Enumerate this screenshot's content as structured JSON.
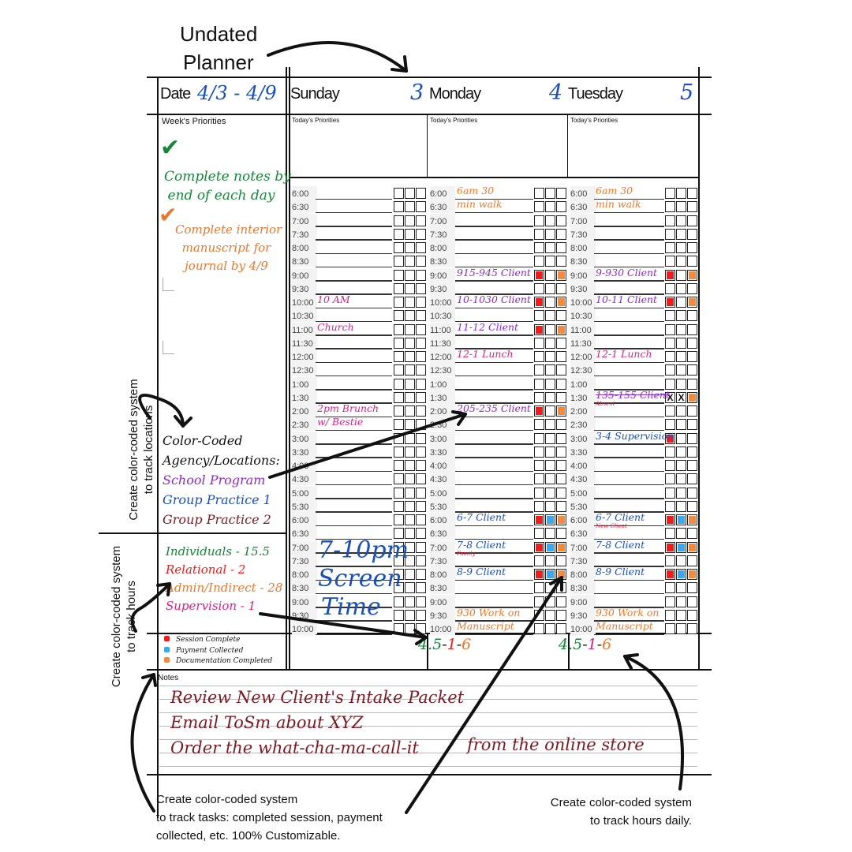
{
  "annotations": {
    "undated": "Undated",
    "planner": "Planner",
    "locations_1": "Create color-coded system",
    "locations_2": "to track locations",
    "hours_1": "Create color-coded system",
    "hours_2": "to track hours",
    "tasks_1": "Create color-coded system",
    "tasks_2": "to track tasks: completed session, payment",
    "tasks_3": "collected, etc. 100% Customizable.",
    "daily_1": "Create color-coded system",
    "daily_2": "to track hours daily."
  },
  "colors": {
    "session_complete": "#f01c1c",
    "payment_collected": "#3aa8f0",
    "documentation_completed": "#f6893a",
    "purple": "#8a2bc8",
    "blue": "#1a4fb8",
    "pink": "#d6228a",
    "orange": "#e8782c",
    "green": "#17853a",
    "maroon": "#7a1a22"
  },
  "header": {
    "date_label": "Date",
    "date_range": "4/3 - 4/9",
    "days": [
      {
        "name": "Sunday",
        "num": "3"
      },
      {
        "name": "Monday",
        "num": "4"
      },
      {
        "name": "Tuesday",
        "num": "5"
      }
    ]
  },
  "week_priorities": {
    "label": "Week's Priorities",
    "items": [
      {
        "text1": "Complete notes by",
        "text2": "end of each day",
        "checked": true
      },
      {
        "text1": "Complete interior",
        "text2": "manuscript for",
        "text3": "journal by 4/9",
        "checked": true
      }
    ]
  },
  "today_priorities_label": "Today's Priorities",
  "locations": {
    "title1": "Color-Coded",
    "title2": "Agency/Locations:",
    "items": [
      {
        "label": "School Program",
        "color": "#8a2bc8"
      },
      {
        "label": "Group Practice 1",
        "color": "#1a4fb8"
      },
      {
        "label": "Group Practice 2",
        "color": "#7a1a22"
      }
    ]
  },
  "hours": [
    {
      "label": "Individuals - 15.5",
      "color": "#17853a"
    },
    {
      "label": "Relational - 2",
      "color": "#f01c1c"
    },
    {
      "label": "Admin/Indirect - 28",
      "color": "#e8782c"
    },
    {
      "label": "Supervision - 1",
      "color": "#d6228a"
    }
  ],
  "legend": [
    {
      "label": "Session Complete",
      "color": "#f01c1c"
    },
    {
      "label": "Payment Collected",
      "color": "#3aa8f0"
    },
    {
      "label": "Documentation Completed",
      "color": "#f6893a"
    }
  ],
  "times": [
    "6:00",
    "6:30",
    "7:00",
    "7:30",
    "8:00",
    "8:30",
    "9:00",
    "9:30",
    "10:00",
    "10:30",
    "11:00",
    "11:30",
    "12:00",
    "12:30",
    "1:00",
    "1:30",
    "2:00",
    "2:30",
    "3:00",
    "3:30",
    "4:00",
    "4:30",
    "5:00",
    "5:30",
    "6:00",
    "6:30",
    "7:00",
    "7:30",
    "8:00",
    "8:30",
    "9:00",
    "9:30",
    "10:00"
  ],
  "days": [
    {
      "entries": {
        "8": {
          "text": "10 AM",
          "color": "#d6228a"
        },
        "10": {
          "text": "Church",
          "color": "#d6228a"
        },
        "16": {
          "text": "2pm Brunch",
          "color": "#d6228a"
        },
        "17": {
          "text": "w/ Bestie",
          "color": "#d6228a"
        }
      },
      "big_note": {
        "l1": "7-10pm",
        "l2": "Screen",
        "l3": "Time",
        "color": "#1a4fb8"
      },
      "totals": []
    },
    {
      "entries": {
        "0": {
          "text": "6am 30",
          "color": "#e8782c"
        },
        "1": {
          "text": "min walk",
          "color": "#e8782c"
        },
        "6": {
          "text": "915-945 Client",
          "color": "#8a2bc8",
          "checks": [
            "r",
            "",
            "o"
          ]
        },
        "8": {
          "text": "10-1030 Client",
          "color": "#8a2bc8",
          "checks": [
            "r",
            "",
            "o"
          ]
        },
        "10": {
          "text": "11-12 Client",
          "color": "#8a2bc8",
          "checks": [
            "r",
            "",
            "o"
          ]
        },
        "12": {
          "text": "12-1 Lunch",
          "color": "#d6228a"
        },
        "16": {
          "text": "205-235 Client",
          "color": "#8a2bc8",
          "checks": [
            "r",
            "",
            "o"
          ]
        },
        "24": {
          "text": "6-7 Client",
          "color": "#1a4fb8",
          "checks": [
            "r",
            "b",
            "o"
          ]
        },
        "26": {
          "text": "7-8 Client",
          "color": "#1a4fb8",
          "checks": [
            "r",
            "b",
            "o"
          ],
          "note": "Family"
        },
        "28": {
          "text": "8-9 Client",
          "color": "#1a4fb8",
          "checks": [
            "r",
            "b",
            "o"
          ]
        },
        "31": {
          "text": "930 Work on",
          "color": "#e8782c"
        },
        "32": {
          "text": "Manuscript",
          "color": "#e8782c"
        }
      },
      "totals": [
        {
          "v": "4.5",
          "color": "#17853a"
        },
        {
          "v": "-",
          "color": "#111"
        },
        {
          "v": "1",
          "color": "#f01c1c"
        },
        {
          "v": "-",
          "color": "#111"
        },
        {
          "v": "6",
          "color": "#e8782c"
        }
      ]
    },
    {
      "entries": {
        "0": {
          "text": "6am 30",
          "color": "#e8782c"
        },
        "1": {
          "text": "min walk",
          "color": "#e8782c"
        },
        "6": {
          "text": "9-930 Client",
          "color": "#8a2bc8",
          "checks": [
            "r",
            "",
            "o"
          ]
        },
        "8": {
          "text": "10-11 Client",
          "color": "#8a2bc8",
          "checks": [
            "r",
            "",
            "o"
          ]
        },
        "12": {
          "text": "12-1 Lunch",
          "color": "#d6228a"
        },
        "15": {
          "text": "135-155 Client",
          "color": "#8a2bc8",
          "strike": true,
          "checks": [
            "x",
            "x",
            "o"
          ]
        },
        "16": {
          "text": "",
          "note": "Absent"
        },
        "18": {
          "text": "3-4 Supervision",
          "color": "#1a4fb8",
          "checks": [
            "r",
            "",
            ""
          ]
        },
        "24": {
          "text": "6-7 Client",
          "color": "#1a4fb8",
          "checks": [
            "r",
            "b",
            "o"
          ]
        },
        "25": {
          "text": "",
          "note": "New Client"
        },
        "26": {
          "text": "7-8 Client",
          "color": "#1a4fb8",
          "checks": [
            "r",
            "b",
            "o"
          ]
        },
        "28": {
          "text": "8-9 Client",
          "color": "#1a4fb8",
          "checks": [
            "r",
            "b",
            "o"
          ]
        },
        "31": {
          "text": "930 Work on",
          "color": "#e8782c"
        },
        "32": {
          "text": "Manuscript",
          "color": "#e8782c"
        }
      },
      "totals": [
        {
          "v": "4.5",
          "color": "#17853a"
        },
        {
          "v": "-",
          "color": "#111"
        },
        {
          "v": "1",
          "color": "#d6228a"
        },
        {
          "v": "-",
          "color": "#111"
        },
        {
          "v": "6",
          "color": "#e8782c"
        }
      ]
    }
  ],
  "notes": {
    "label": "Notes",
    "lines": [
      "Review New Client's Intake Packet",
      "Email ToSm about XYZ",
      "Order the what-cha-ma-call-it"
    ],
    "extra": "from the online store",
    "color": "#7a1a22"
  }
}
